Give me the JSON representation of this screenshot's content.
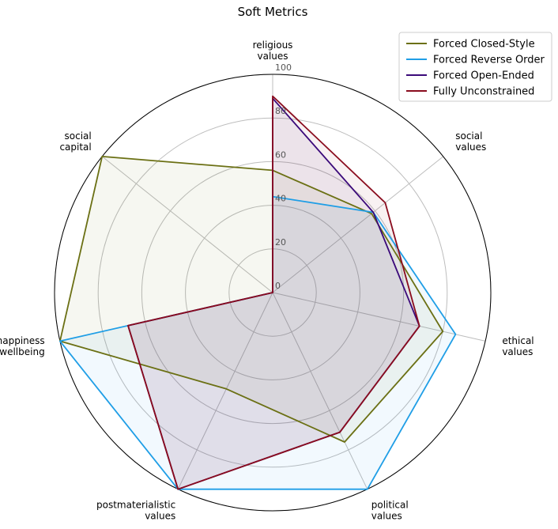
{
  "chart_data": {
    "type": "radar",
    "title": "Soft Metrics",
    "categories": [
      [
        "religious",
        "values"
      ],
      [
        "social",
        "values"
      ],
      [
        "ethical",
        "values"
      ],
      [
        "political",
        "values"
      ],
      [
        "postmaterialistic",
        "values"
      ],
      [
        "happiness",
        "& wellbeing"
      ],
      [
        "social",
        "capital"
      ]
    ],
    "rticks": [
      0,
      20,
      40,
      60,
      80,
      100
    ],
    "rlim": [
      0,
      100
    ],
    "grid": true,
    "legend_position": "top-right",
    "series": [
      {
        "name": "Forced Closed-Style",
        "color": "#6b7014",
        "fill_opacity": 0.06,
        "values": [
          56,
          58,
          80,
          76,
          49,
          100,
          100
        ]
      },
      {
        "name": "Forced Reverse Order",
        "color": "#1f9ee6",
        "fill_opacity": 0.06,
        "values": [
          44,
          59,
          86,
          100,
          100,
          100,
          0
        ]
      },
      {
        "name": "Forced Open-Ended",
        "color": "#3b0a7a",
        "fill_opacity": 0.06,
        "values": [
          89,
          59,
          69,
          71,
          100,
          68,
          0
        ]
      },
      {
        "name": "Fully Unconstrained",
        "color": "#8a0c1e",
        "fill_opacity": 0.06,
        "values": [
          90,
          66,
          69,
          71,
          100,
          68,
          0
        ]
      }
    ]
  }
}
